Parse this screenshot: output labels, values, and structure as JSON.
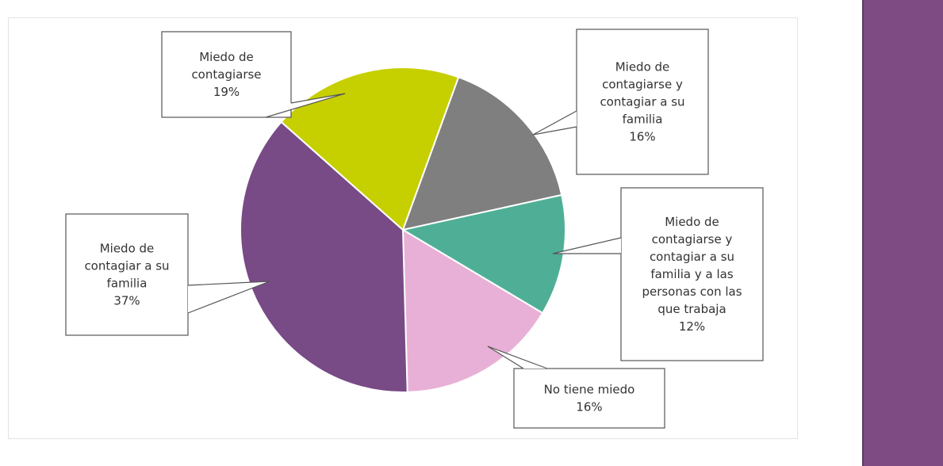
{
  "chart_data": {
    "type": "pie",
    "title": "",
    "start_angle_deg": 20,
    "slices": [
      {
        "label": [
          "Miedo de",
          "contagiarse y",
          "contagiar a su",
          "familia"
        ],
        "value": 16,
        "value_label": "16%",
        "color": "#7f7f7f"
      },
      {
        "label": [
          "Miedo de",
          "contagiarse y",
          "contagiar a su",
          "familia y a las",
          "personas con las",
          "que trabaja"
        ],
        "value": 12,
        "value_label": "12%",
        "color": "#4faf96"
      },
      {
        "label": [
          "No tiene miedo"
        ],
        "value": 16,
        "value_label": "16%",
        "color": "#e8b0d6"
      },
      {
        "label": [
          "Miedo de",
          "contagiar a su",
          "familia"
        ],
        "value": 37,
        "value_label": "37%",
        "color": "#784a86"
      },
      {
        "label": [
          "Miedo de",
          "contagiarse"
        ],
        "value": 19,
        "value_label": "19%",
        "color": "#c6cf00"
      }
    ]
  },
  "colors": {
    "sidebar": "#7e4b83"
  }
}
